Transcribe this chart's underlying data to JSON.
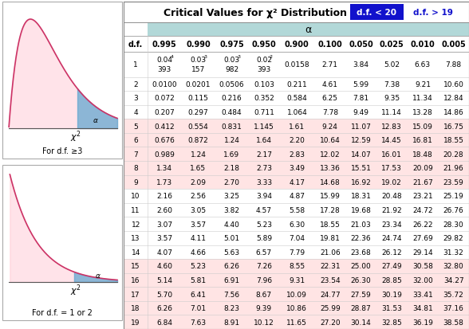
{
  "title": "Critical Values for χ² Distribution",
  "tab1_label": "d.f. < 20",
  "tab2_label": "d.f. > 19",
  "alpha_label": "α",
  "col_headers": [
    "d.f.",
    "0.995",
    "0.990",
    "0.975",
    "0.950",
    "0.900",
    "0.100",
    "0.050",
    "0.025",
    "0.010",
    "0.005"
  ],
  "row1_line1": [
    "1",
    "0.04",
    "0.03",
    "0.03",
    "0.02",
    "0.0158",
    "2.71",
    "3.84",
    "5.02",
    "6.63",
    "7.88"
  ],
  "row1_line2": [
    "",
    "393",
    "157",
    "982",
    "393",
    "",
    "",
    "",
    "",
    "",
    ""
  ],
  "row1_superscripts": [
    null,
    "4",
    "3",
    "3",
    "2",
    null,
    null,
    null,
    null,
    null,
    null
  ],
  "rows": [
    [
      "2",
      "0.0100",
      "0.0201",
      "0.0506",
      "0.103",
      "0.211",
      "4.61",
      "5.99",
      "7.38",
      "9.21",
      "10.60"
    ],
    [
      "3",
      "0.072",
      "0.115",
      "0.216",
      "0.352",
      "0.584",
      "6.25",
      "7.81",
      "9.35",
      "11.34",
      "12.84"
    ],
    [
      "4",
      "0.207",
      "0.297",
      "0.484",
      "0.711",
      "1.064",
      "7.78",
      "9.49",
      "11.14",
      "13.28",
      "14.86"
    ],
    [
      "5",
      "0.412",
      "0.554",
      "0.831",
      "1.145",
      "1.61",
      "9.24",
      "11.07",
      "12.83",
      "15.09",
      "16.75"
    ],
    [
      "6",
      "0.676",
      "0.872",
      "1.24",
      "1.64",
      "2.20",
      "10.64",
      "12.59",
      "14.45",
      "16.81",
      "18.55"
    ],
    [
      "7",
      "0.989",
      "1.24",
      "1.69",
      "2.17",
      "2.83",
      "12.02",
      "14.07",
      "16.01",
      "18.48",
      "20.28"
    ],
    [
      "8",
      "1.34",
      "1.65",
      "2.18",
      "2.73",
      "3.49",
      "13.36",
      "15.51",
      "17.53",
      "20.09",
      "21.96"
    ],
    [
      "9",
      "1.73",
      "2.09",
      "2.70",
      "3.33",
      "4.17",
      "14.68",
      "16.92",
      "19.02",
      "21.67",
      "23.59"
    ],
    [
      "10",
      "2.16",
      "2.56",
      "3.25",
      "3.94",
      "4.87",
      "15.99",
      "18.31",
      "20.48",
      "23.21",
      "25.19"
    ],
    [
      "11",
      "2.60",
      "3.05",
      "3.82",
      "4.57",
      "5.58",
      "17.28",
      "19.68",
      "21.92",
      "24.72",
      "26.76"
    ],
    [
      "12",
      "3.07",
      "3.57",
      "4.40",
      "5.23",
      "6.30",
      "18.55",
      "21.03",
      "23.34",
      "26.22",
      "28.30"
    ],
    [
      "13",
      "3.57",
      "4.11",
      "5.01",
      "5.89",
      "7.04",
      "19.81",
      "22.36",
      "24.74",
      "27.69",
      "29.82"
    ],
    [
      "14",
      "4.07",
      "4.66",
      "5.63",
      "6.57",
      "7.79",
      "21.06",
      "23.68",
      "26.12",
      "29.14",
      "31.32"
    ],
    [
      "15",
      "4.60",
      "5.23",
      "6.26",
      "7.26",
      "8.55",
      "22.31",
      "25.00",
      "27.49",
      "30.58",
      "32.80"
    ],
    [
      "16",
      "5.14",
      "5.81",
      "6.91",
      "7.96",
      "9.31",
      "23.54",
      "26.30",
      "28.85",
      "32.00",
      "34.27"
    ],
    [
      "17",
      "5.70",
      "6.41",
      "7.56",
      "8.67",
      "10.09",
      "24.77",
      "27.59",
      "30.19",
      "33.41",
      "35.72"
    ],
    [
      "18",
      "6.26",
      "7.01",
      "8.23",
      "9.39",
      "10.86",
      "25.99",
      "28.87",
      "31.53",
      "34.81",
      "37.16"
    ],
    [
      "19",
      "6.84",
      "7.63",
      "8.91",
      "10.12",
      "11.65",
      "27.20",
      "30.14",
      "32.85",
      "36.19",
      "38.58"
    ]
  ],
  "pink_dfs": [
    5,
    6,
    7,
    8,
    9,
    15,
    16,
    17,
    18,
    19
  ],
  "teal_bg": "#b2d8d8",
  "pink_bg": "#ffe4e4",
  "white_bg": "#ffffff",
  "tab1_bg": "#1111cc",
  "tab1_fg": "#ffffff",
  "tab2_fg": "#1111cc",
  "border_color": "#bbbbbb",
  "text_color": "#111111"
}
